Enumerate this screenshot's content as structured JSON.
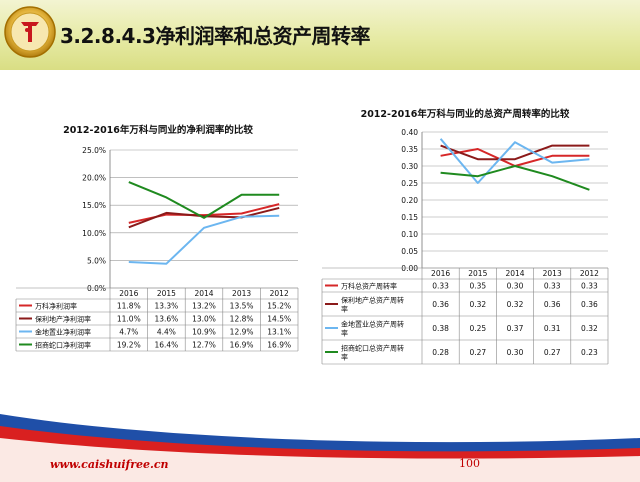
{
  "slide": {
    "title": "3.2.8.4.3净利润率和总资产周转率",
    "footer_url": "www.caishuifree.cn",
    "page_number": "100"
  },
  "colors": {
    "series": [
      "#d62728",
      "#8b1a1a",
      "#6cb6f0",
      "#1f8a1f"
    ]
  },
  "chart_data": [
    {
      "type": "line",
      "title": "2012-2016年万科与同业的净利润率的比较",
      "categories": [
        "2016",
        "2015",
        "2014",
        "2013",
        "2012"
      ],
      "ylim": [
        0,
        25
      ],
      "yticks": [
        "0.0%",
        "5.0%",
        "10.0%",
        "15.0%",
        "20.0%",
        "25.0%"
      ],
      "grid": true,
      "legend": "table-below",
      "series": [
        {
          "name": "万科净利润率",
          "values": [
            11.8,
            13.3,
            13.2,
            13.5,
            15.2
          ],
          "labels": [
            "11.8%",
            "13.3%",
            "13.2%",
            "13.5%",
            "15.2%"
          ]
        },
        {
          "name": "保利地产净利润率",
          "values": [
            11.0,
            13.6,
            13.0,
            12.8,
            14.5
          ],
          "labels": [
            "11.0%",
            "13.6%",
            "13.0%",
            "12.8%",
            "14.5%"
          ]
        },
        {
          "name": "金地置业净利润率",
          "values": [
            4.7,
            4.4,
            10.9,
            12.9,
            13.1
          ],
          "labels": [
            "4.7%",
            "4.4%",
            "10.9%",
            "12.9%",
            "13.1%"
          ]
        },
        {
          "name": "招商蛇口净利润率",
          "values": [
            19.2,
            16.4,
            12.7,
            16.9,
            16.9
          ],
          "labels": [
            "19.2%",
            "16.4%",
            "12.7%",
            "16.9%",
            "16.9%"
          ]
        }
      ]
    },
    {
      "type": "line",
      "title": "2012-2016年万科与同业的总资产周转率的比较",
      "categories": [
        "2016",
        "2015",
        "2014",
        "2013",
        "2012"
      ],
      "ylim": [
        0,
        0.4
      ],
      "yticks": [
        "0.00",
        "0.05",
        "0.10",
        "0.15",
        "0.20",
        "0.25",
        "0.30",
        "0.35",
        "0.40"
      ],
      "grid": true,
      "legend": "table-below",
      "series": [
        {
          "name": "万科总资产周转率",
          "values": [
            0.33,
            0.35,
            0.3,
            0.33,
            0.33
          ],
          "labels": [
            "0.33",
            "0.35",
            "0.30",
            "0.33",
            "0.33"
          ]
        },
        {
          "name": "保利地产总资产周转率",
          "values": [
            0.36,
            0.32,
            0.32,
            0.36,
            0.36
          ],
          "labels": [
            "0.36",
            "0.32",
            "0.32",
            "0.36",
            "0.36"
          ]
        },
        {
          "name": "金地置业总资产周转率",
          "values": [
            0.38,
            0.25,
            0.37,
            0.31,
            0.32
          ],
          "labels": [
            "0.38",
            "0.25",
            "0.37",
            "0.31",
            "0.32"
          ]
        },
        {
          "name": "招商蛇口总资产周转率",
          "values": [
            0.28,
            0.27,
            0.3,
            0.27,
            0.23
          ],
          "labels": [
            "0.28",
            "0.27",
            "0.30",
            "0.27",
            "0.23"
          ]
        }
      ]
    }
  ]
}
